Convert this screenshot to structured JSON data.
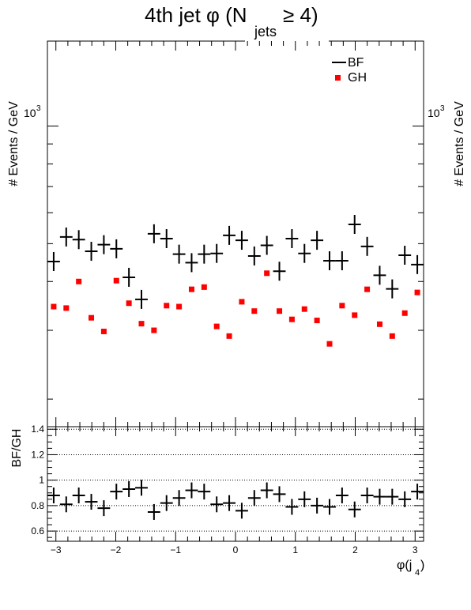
{
  "chart_data": [
    {
      "type": "scatter",
      "title": "4th jet φ (N",
      "title_sub": "jets",
      "title_tail": " ≥ 4)",
      "ylabel_left": "# Events / GeV",
      "ylabel_right": "# Events / GeV",
      "y_scale": "log",
      "ylim": [
        170,
        1650
      ],
      "xlim": [
        -3.14159,
        3.14159
      ],
      "y_tick_label": "10",
      "y_tick_exp": "3",
      "legend": [
        {
          "name": "BF",
          "marker": "cross",
          "color": "#000000"
        },
        {
          "name": "GH",
          "marker": "square",
          "color": "#ff0000"
        }
      ],
      "legend_placement": "top-right",
      "x": [
        -3.0369,
        -2.8274,
        -2.618,
        -2.4086,
        -2.1991,
        -1.9897,
        -1.7802,
        -1.5708,
        -1.3614,
        -1.1519,
        -0.9425,
        -0.733,
        -0.5236,
        -0.3142,
        -0.1047,
        0.1047,
        0.3142,
        0.5236,
        0.733,
        0.9425,
        1.1519,
        1.3614,
        1.5708,
        1.7802,
        1.9897,
        2.1991,
        2.4086,
        2.618,
        2.8274,
        3.0369
      ],
      "series": [
        {
          "name": "BF",
          "color": "#000000",
          "values": [
            450,
            520,
            512,
            478,
            497,
            485,
            410,
            360,
            530,
            515,
            470,
            447,
            470,
            472,
            525,
            510,
            465,
            495,
            425,
            515,
            472,
            510,
            452,
            452,
            560,
            492,
            415,
            383,
            467,
            442
          ]
        },
        {
          "name": "GH",
          "color": "#ff0000",
          "values": [
            345,
            342,
            400,
            323,
            298,
            402,
            352,
            312,
            300,
            347,
            345,
            382,
            387,
            307,
            290,
            355,
            336,
            420,
            336,
            320,
            340,
            318,
            277,
            347,
            328,
            382,
            311,
            290,
            332,
            375
          ]
        }
      ]
    },
    {
      "type": "scatter",
      "ylabel": "BF/GH",
      "xlabel": "φ(j",
      "xlabel_sub": "4",
      "xlabel_tail": ")",
      "ylim": [
        0.52,
        1.42
      ],
      "xlim": [
        -3.14159,
        3.14159
      ],
      "grid": "horizontal dotted",
      "y_ticks": [
        "0.6",
        "0.8",
        "1",
        "1.2",
        "1.4"
      ],
      "x_ticks": [
        "−3",
        "−2",
        "−1",
        "0",
        "1",
        "2",
        "3"
      ],
      "x": [
        -3.0369,
        -2.8274,
        -2.618,
        -2.4086,
        -2.1991,
        -1.9897,
        -1.7802,
        -1.5708,
        -1.3614,
        -1.1519,
        -0.9425,
        -0.733,
        -0.5236,
        -0.3142,
        -0.1047,
        0.1047,
        0.3142,
        0.5236,
        0.733,
        0.9425,
        1.1519,
        1.3614,
        1.5708,
        1.7802,
        1.9897,
        2.1991,
        2.4086,
        2.618,
        2.8274,
        3.0369
      ],
      "series": [
        {
          "name": "BF/GH",
          "color": "#000000",
          "values": [
            0.88,
            0.81,
            0.88,
            0.83,
            0.78,
            0.91,
            0.93,
            0.94,
            0.75,
            0.82,
            0.86,
            0.92,
            0.91,
            0.81,
            0.82,
            0.76,
            0.86,
            0.92,
            0.89,
            0.79,
            0.85,
            0.8,
            0.79,
            0.88,
            0.77,
            0.88,
            0.87,
            0.87,
            0.85,
            0.91
          ]
        }
      ]
    }
  ]
}
